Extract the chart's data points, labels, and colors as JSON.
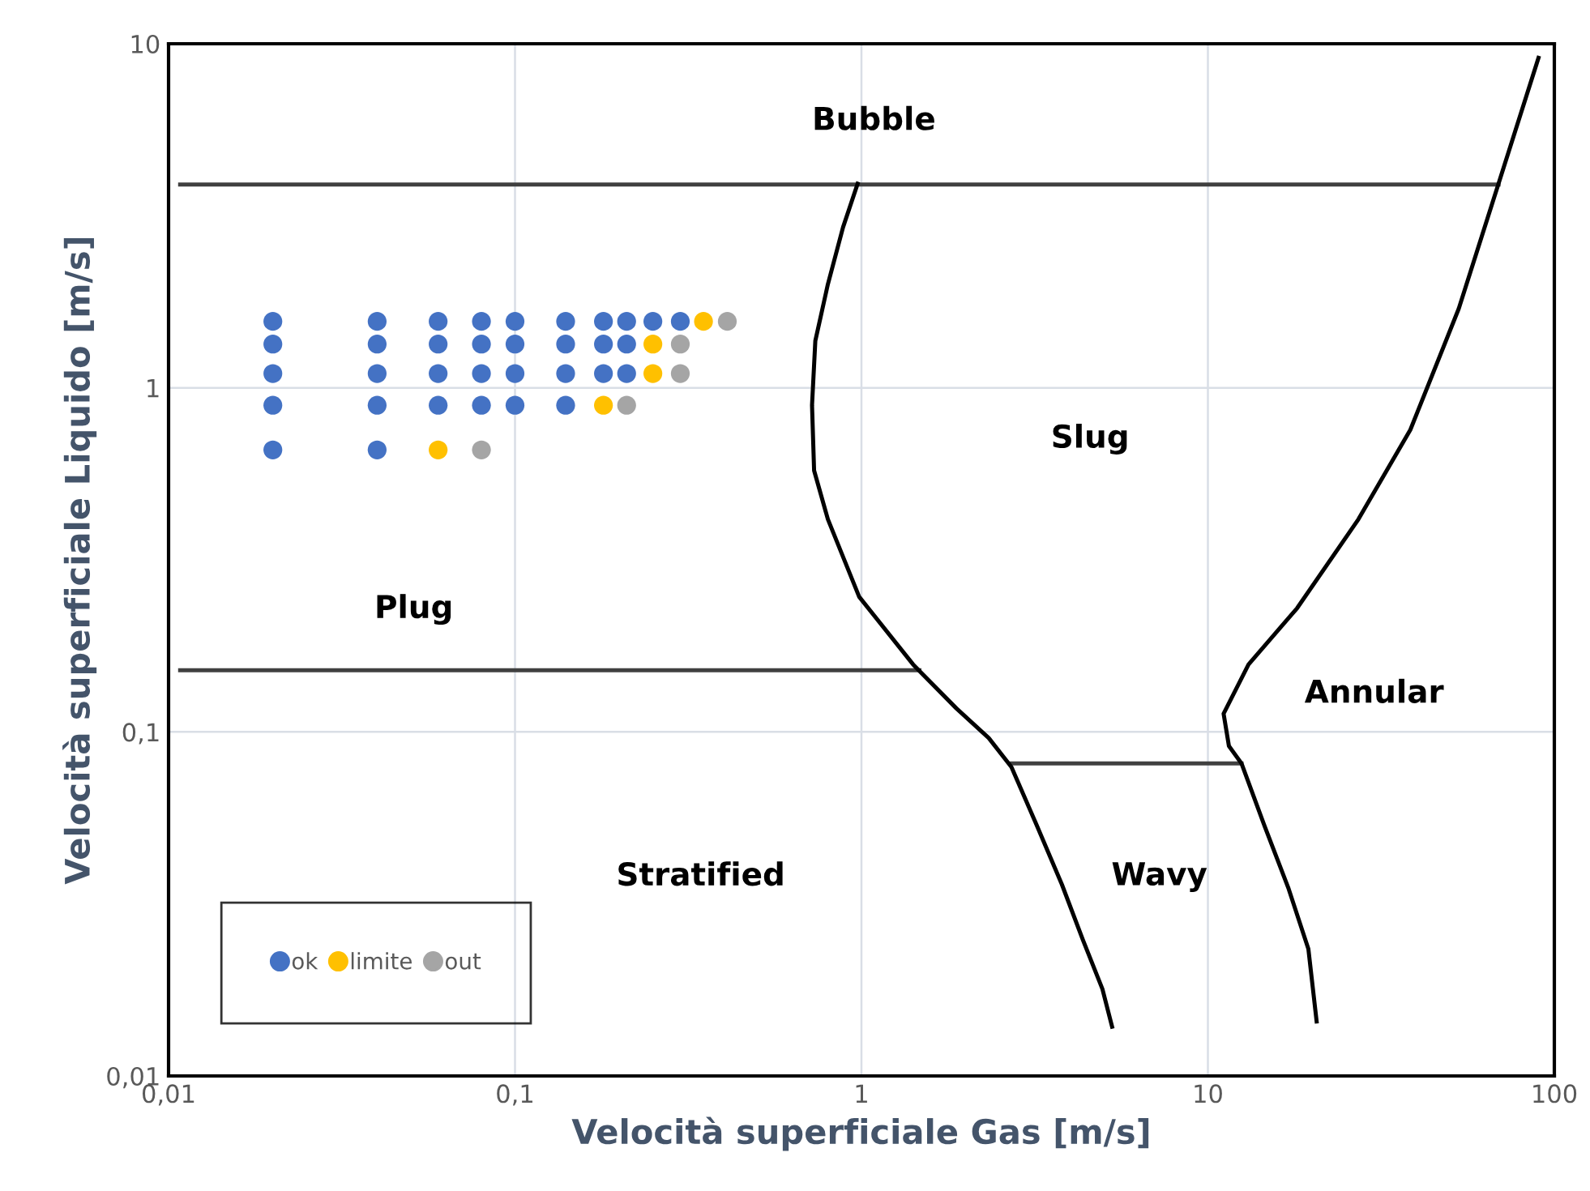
{
  "chart_data": {
    "type": "scatter",
    "xlabel": "Velocità superficiale Gas [m/s]",
    "ylabel": "Velocità superficiale Liquido [m/s]",
    "log": "xy",
    "grid": true,
    "legend": "bottom left",
    "marker": "circle",
    "xlim": [
      0.01,
      100
    ],
    "ylim": [
      0.01,
      10
    ],
    "xticks": [
      {
        "value": 0.01,
        "label": "0,01"
      },
      {
        "value": 0.1,
        "label": "0,1"
      },
      1,
      10,
      100
    ],
    "yticks": [
      {
        "value": 0.01,
        "label": "0,01"
      },
      {
        "value": 0.1,
        "label": "0,1"
      },
      1,
      10
    ],
    "series": [
      {
        "name": "ok",
        "color": "#4472c4",
        "x": [
          0.02,
          0.04,
          0.06,
          0.08,
          0.1,
          0.14,
          0.18,
          0.21,
          0.25,
          0.3,
          0.02,
          0.04,
          0.06,
          0.08,
          0.1,
          0.14,
          0.18,
          0.21,
          0.02,
          0.04,
          0.06,
          0.08,
          0.1,
          0.14,
          0.18,
          0.21,
          0.02,
          0.04,
          0.06,
          0.08,
          0.1,
          0.14,
          0.02,
          0.04
        ],
        "values": [
          1.56,
          1.56,
          1.56,
          1.56,
          1.56,
          1.56,
          1.56,
          1.56,
          1.56,
          1.56,
          1.34,
          1.34,
          1.34,
          1.34,
          1.34,
          1.34,
          1.34,
          1.34,
          1.1,
          1.1,
          1.1,
          1.1,
          1.1,
          1.1,
          1.1,
          1.1,
          0.89,
          0.89,
          0.89,
          0.89,
          0.89,
          0.89,
          0.66,
          0.66
        ]
      },
      {
        "name": "limite",
        "color": "#ffc000",
        "x": [
          0.35,
          0.25,
          0.25,
          0.18,
          0.06
        ],
        "values": [
          1.56,
          1.34,
          1.1,
          0.89,
          0.66
        ]
      },
      {
        "name": "out",
        "color": "#a5a5a5",
        "x": [
          0.41,
          0.3,
          0.3,
          0.21,
          0.08
        ],
        "values": [
          1.56,
          1.34,
          1.1,
          0.89,
          0.66
        ]
      },
      {
        "type": "line",
        "color": "#404040",
        "marker": "none",
        "x": [
          0.0108,
          69
        ],
        "values": [
          3.9,
          3.9
        ]
      },
      {
        "type": "line",
        "color": "#404040",
        "marker": "none",
        "x": [
          0.0108,
          1.47
        ],
        "values": [
          0.151,
          0.151
        ]
      },
      {
        "type": "line",
        "color": "#404040",
        "marker": "none",
        "x": [
          2.71,
          12.5
        ],
        "values": [
          0.081,
          0.081
        ]
      },
      {
        "type": "line",
        "color": "#000000",
        "marker": "none",
        "x": [
          0.975,
          0.885,
          0.8,
          0.736,
          0.72,
          0.73,
          0.8,
          0.985,
          1.41,
          1.88,
          2.33,
          2.71,
          3.22,
          3.79,
          4.36,
          4.96,
          5.29
        ],
        "values": [
          3.92,
          2.93,
          2.0,
          1.37,
          0.89,
          0.575,
          0.415,
          0.247,
          0.157,
          0.117,
          0.096,
          0.079,
          0.053,
          0.036,
          0.0248,
          0.0179,
          0.0139
        ]
      },
      {
        "type": "line",
        "color": "#000000",
        "marker": "none",
        "x": [
          90,
          69,
          53,
          38.4,
          27.2,
          18.1,
          13.1,
          11.1,
          11.5,
          12.5,
          14.6,
          17.1,
          19.5,
          20.6
        ],
        "values": [
          9.1,
          3.92,
          1.7,
          0.755,
          0.415,
          0.229,
          0.157,
          0.113,
          0.091,
          0.081,
          0.053,
          0.035,
          0.0234,
          0.0144
        ]
      }
    ],
    "annotations": [
      "Bubble",
      "Slug",
      "Plug",
      "Annular",
      "Stratified",
      "Wavy"
    ]
  }
}
